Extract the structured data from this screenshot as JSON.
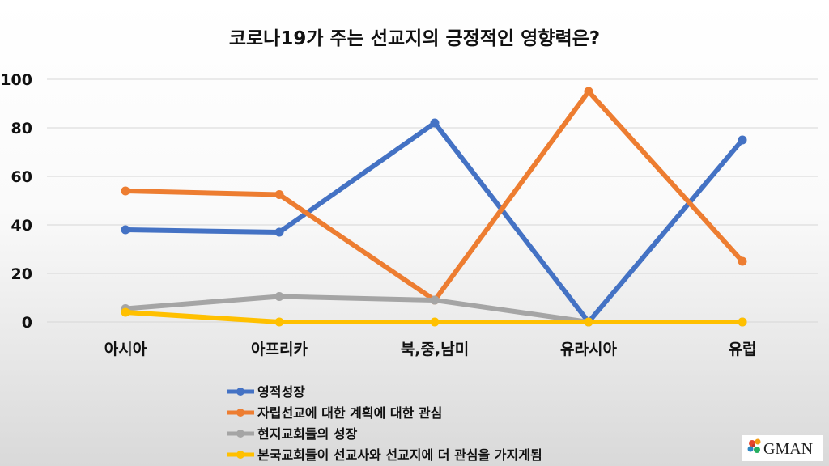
{
  "chart_data": {
    "type": "line",
    "title": "코로나19가 주는 선교지의 긍정적인 영향력은?",
    "categories": [
      "아시아",
      "아프리카",
      "북,중,남미",
      "유라시아",
      "유럽"
    ],
    "ylim": [
      0,
      100
    ],
    "yticks": [
      0,
      20,
      40,
      60,
      80,
      100
    ],
    "grid": true,
    "legend_position": "bottom-center",
    "series": [
      {
        "name": "영적성장",
        "color": "#4472C4",
        "values": [
          38,
          37,
          82,
          0,
          75
        ]
      },
      {
        "name": "자립선교에 대한 계획에 대한 관심",
        "color": "#ED7D31",
        "values": [
          54,
          52.5,
          9,
          95,
          25
        ]
      },
      {
        "name": "현지교회들의 성장",
        "color": "#A5A5A5",
        "values": [
          5.5,
          10.5,
          9,
          0,
          0
        ]
      },
      {
        "name": "본국교회들이 선교사와 선교지에 더 관심을 가지게됨",
        "color": "#FFC000",
        "values": [
          4,
          0,
          0,
          0,
          0
        ]
      }
    ]
  },
  "logo": {
    "text": "GMAN",
    "icon": "flower-logo-icon"
  }
}
